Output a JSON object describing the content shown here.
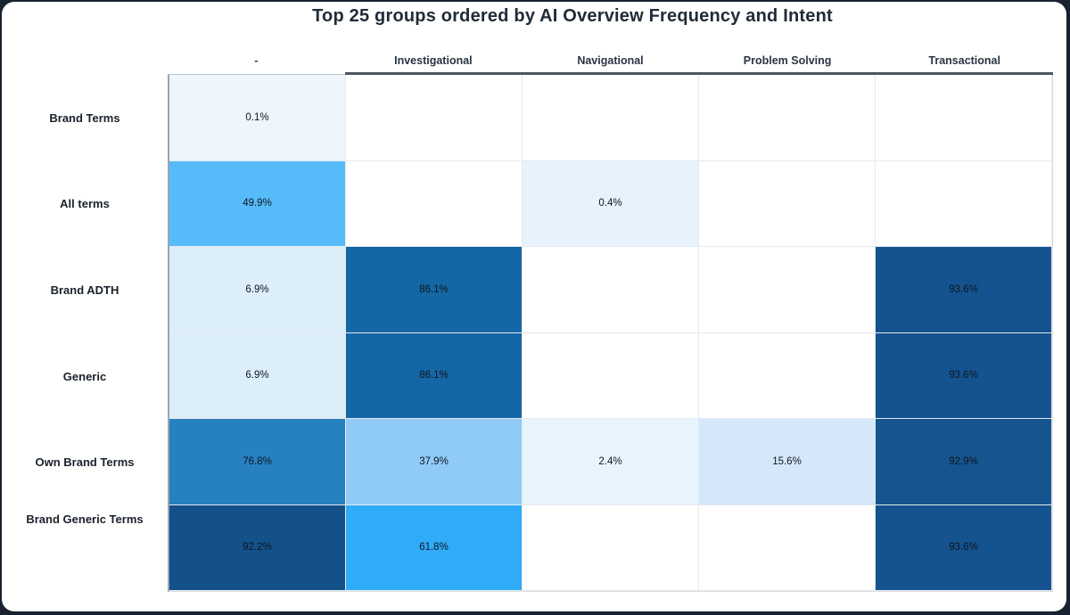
{
  "page": {
    "title": "Top 25 groups ordered by AI Overview Frequency and Intent"
  },
  "theme": {
    "outer_border": "#182230",
    "card_background": "#ffffff",
    "empty_cell": "#ffffff",
    "grid_top_bar": "#4d565f",
    "header_text": "#2a3442",
    "cell_text": "#0e1621"
  },
  "chart_data": {
    "type": "heatmap",
    "title": "Top 25 groups ordered by AI Overview Frequency and Intent",
    "value_format": "percent",
    "legend": "none",
    "columns": [
      "-",
      "Investigational",
      "Navigational",
      "Problem Solving",
      "Transactional"
    ],
    "rows": [
      "Brand Terms",
      "All terms",
      "Brand ADTH",
      "Generic",
      "Own Brand Terms",
      "Brand Generic Terms"
    ],
    "cells": [
      [
        {
          "value": 0.1,
          "label": "0.1%",
          "color": "#eef6fc"
        },
        null,
        null,
        null,
        null
      ],
      [
        {
          "value": 49.9,
          "label": "49.9%",
          "color": "#57bbfa"
        },
        null,
        {
          "value": 0.4,
          "label": "0.4%",
          "color": "#e7f2fc"
        },
        null,
        null
      ],
      [
        {
          "value": 6.9,
          "label": "6.9%",
          "color": "#ddeefb"
        },
        {
          "value": 86.1,
          "label": "86.1%",
          "color": "#1566a4"
        },
        null,
        null,
        {
          "value": 93.6,
          "label": "93.6%",
          "color": "#14538f"
        }
      ],
      [
        {
          "value": 6.9,
          "label": "6.9%",
          "color": "#ddeefb"
        },
        {
          "value": 86.1,
          "label": "86.1%",
          "color": "#1566a4"
        },
        null,
        null,
        {
          "value": 93.6,
          "label": "93.6%",
          "color": "#14538f"
        }
      ],
      [
        {
          "value": 76.8,
          "label": "76.8%",
          "color": "#2780c0"
        },
        {
          "value": 37.9,
          "label": "37.9%",
          "color": "#90cbf6"
        },
        {
          "value": 2.4,
          "label": "2.4%",
          "color": "#e8f4fd"
        },
        {
          "value": 15.6,
          "label": "15.6%",
          "color": "#d5e8fb"
        },
        {
          "value": 92.9,
          "label": "92.9%",
          "color": "#15548e"
        }
      ],
      [
        {
          "value": 92.2,
          "label": "92.2%",
          "color": "#14508a"
        },
        {
          "value": 61.8,
          "label": "61.8%",
          "color": "#2fabf7"
        },
        null,
        null,
        {
          "value": 93.6,
          "label": "93.6%",
          "color": "#14538f"
        }
      ]
    ]
  }
}
